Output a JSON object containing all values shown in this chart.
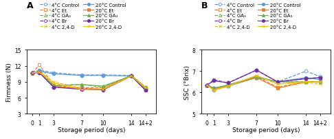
{
  "x_ticks": [
    0,
    1,
    3,
    7,
    10,
    14,
    16
  ],
  "x_tick_labels": [
    "0",
    "1",
    "3",
    "7",
    "10",
    "14",
    "14+2"
  ],
  "panel_A": {
    "ylabel": "Firmness (N)",
    "xlabel": "Storage period (days)",
    "ylim": [
      3,
      15
    ],
    "yticks": [
      3,
      6,
      9,
      12,
      15
    ],
    "series": {
      "4C_Control": {
        "color": "#5b9bd5",
        "linestyle": "dashed",
        "marker": "o",
        "mfc": "white",
        "data": [
          10.7,
          11.2,
          10.7,
          10.3,
          10.3,
          10.2,
          7.9
        ]
      },
      "4C_Et": {
        "color": "#ed7d31",
        "linestyle": "dashed",
        "marker": "s",
        "mfc": "white",
        "data": [
          10.7,
          12.2,
          8.3,
          7.9,
          7.9,
          10.2,
          8.0
        ]
      },
      "4C_GA3": {
        "color": "#70ad47",
        "linestyle": "dashed",
        "marker": "^",
        "mfc": "white",
        "data": [
          10.7,
          11.2,
          8.3,
          8.5,
          8.0,
          10.2,
          8.0
        ]
      },
      "4C_Br": {
        "color": "#7030a0",
        "linestyle": "dashed",
        "marker": "o",
        "mfc": "white",
        "data": [
          10.7,
          10.8,
          8.0,
          7.8,
          7.6,
          10.2,
          7.7
        ]
      },
      "4C_24D": {
        "color": "#ffc000",
        "linestyle": "dashed",
        "marker": "x",
        "mfc": "white",
        "data": [
          10.7,
          11.0,
          9.0,
          7.8,
          7.7,
          10.2,
          7.7
        ]
      },
      "20C_Control": {
        "color": "#5b9bd5",
        "linestyle": "solid",
        "marker": "o",
        "mfc": "#5b9bd5",
        "data": [
          10.7,
          11.0,
          10.5,
          10.2,
          10.2,
          10.1,
          7.6
        ]
      },
      "20C_Et": {
        "color": "#ed7d31",
        "linestyle": "solid",
        "marker": "s",
        "mfc": "#ed7d31",
        "data": [
          10.7,
          10.8,
          8.2,
          7.7,
          7.6,
          10.1,
          7.5
        ]
      },
      "20C_GA3": {
        "color": "#70ad47",
        "linestyle": "solid",
        "marker": "^",
        "mfc": "#70ad47",
        "data": [
          10.7,
          10.8,
          8.3,
          8.5,
          8.2,
          10.1,
          8.0
        ]
      },
      "20C_Br": {
        "color": "#7030a0",
        "linestyle": "solid",
        "marker": "o",
        "mfc": "#7030a0",
        "data": [
          10.7,
          10.7,
          8.0,
          7.6,
          7.5,
          10.1,
          7.4
        ]
      },
      "20C_24D": {
        "color": "#ffc000",
        "linestyle": "solid",
        "marker": "x",
        "mfc": "#ffc000",
        "data": [
          10.7,
          10.8,
          8.8,
          7.6,
          7.6,
          10.1,
          7.9
        ]
      }
    }
  },
  "panel_B": {
    "ylabel": "SSC (°Brix)",
    "xlabel": "Storage period (days)",
    "ylim": [
      5,
      8
    ],
    "yticks": [
      5,
      6,
      7,
      8
    ],
    "series": {
      "4C_Control": {
        "color": "#5b9bd5",
        "linestyle": "dashed",
        "marker": "o",
        "mfc": "white",
        "data": [
          6.35,
          6.1,
          6.3,
          6.7,
          6.5,
          7.0,
          6.75
        ]
      },
      "4C_Et": {
        "color": "#ed7d31",
        "linestyle": "dashed",
        "marker": "s",
        "mfc": "white",
        "data": [
          6.35,
          6.2,
          6.35,
          6.75,
          6.25,
          6.5,
          6.5
        ]
      },
      "4C_GA3": {
        "color": "#70ad47",
        "linestyle": "dashed",
        "marker": "^",
        "mfc": "white",
        "data": [
          6.35,
          6.2,
          6.3,
          6.7,
          6.5,
          6.5,
          6.5
        ]
      },
      "4C_Br": {
        "color": "#7030a0",
        "linestyle": "dashed",
        "marker": "o",
        "mfc": "white",
        "data": [
          6.35,
          6.6,
          6.45,
          7.05,
          6.5,
          6.65,
          6.7
        ]
      },
      "4C_24D": {
        "color": "#ffc000",
        "linestyle": "dashed",
        "marker": "x",
        "mfc": "white",
        "data": [
          6.35,
          6.1,
          6.3,
          6.8,
          6.4,
          6.45,
          6.4
        ]
      },
      "20C_Control": {
        "color": "#5b9bd5",
        "linestyle": "solid",
        "marker": "o",
        "mfc": "#5b9bd5",
        "data": [
          6.35,
          6.2,
          6.35,
          6.7,
          6.5,
          6.7,
          6.6
        ]
      },
      "20C_Et": {
        "color": "#ed7d31",
        "linestyle": "solid",
        "marker": "s",
        "mfc": "#ed7d31",
        "data": [
          6.35,
          6.15,
          6.35,
          6.7,
          6.2,
          6.5,
          6.5
        ]
      },
      "20C_GA3": {
        "color": "#70ad47",
        "linestyle": "solid",
        "marker": "^",
        "mfc": "#70ad47",
        "data": [
          6.35,
          6.2,
          6.35,
          6.75,
          6.5,
          6.5,
          6.5
        ]
      },
      "20C_Br": {
        "color": "#7030a0",
        "linestyle": "solid",
        "marker": "o",
        "mfc": "#7030a0",
        "data": [
          6.35,
          6.55,
          6.45,
          7.05,
          6.5,
          6.65,
          6.7
        ]
      },
      "20C_24D": {
        "color": "#ffc000",
        "linestyle": "solid",
        "marker": "x",
        "mfc": "#ffc000",
        "data": [
          6.35,
          6.1,
          6.3,
          6.8,
          6.4,
          6.5,
          6.5
        ]
      }
    }
  },
  "legend_4C": [
    {
      "label": "4°C Control",
      "color": "#5b9bd5",
      "marker": "o",
      "mfc": "white"
    },
    {
      "label": "4°C Et",
      "color": "#ed7d31",
      "marker": "s",
      "mfc": "white"
    },
    {
      "label": "4°C GA₃",
      "color": "#70ad47",
      "marker": "^",
      "mfc": "white"
    },
    {
      "label": "4°C Br",
      "color": "#7030a0",
      "marker": "o",
      "mfc": "white"
    },
    {
      "label": "4°C 2,4-D",
      "color": "#ffc000",
      "marker": "x",
      "mfc": "white"
    }
  ],
  "legend_20C": [
    {
      "label": "20°C Control",
      "color": "#5b9bd5",
      "marker": "o",
      "mfc": "#5b9bd5"
    },
    {
      "label": "20°C Et",
      "color": "#ed7d31",
      "marker": "s",
      "mfc": "#ed7d31"
    },
    {
      "label": "20°C GA₃",
      "color": "#70ad47",
      "marker": "^",
      "mfc": "#70ad47"
    },
    {
      "label": "20°C Br",
      "color": "#7030a0",
      "marker": "o",
      "mfc": "#7030a0"
    },
    {
      "label": "20°C 2,4-D",
      "color": "#ffc000",
      "marker": "x",
      "mfc": "#ffc000"
    }
  ],
  "marker_size": 3.5,
  "linewidth": 0.9,
  "label_fontsize": 6.5,
  "tick_fontsize": 5.5,
  "legend_fontsize": 5.0
}
